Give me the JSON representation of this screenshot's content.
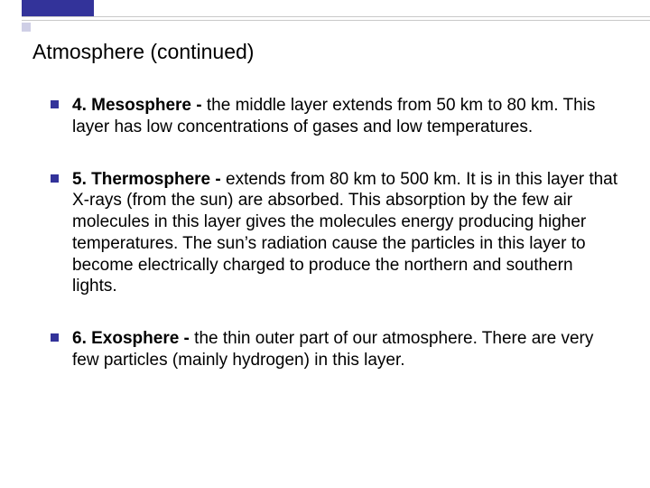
{
  "theme": {
    "accent_color": "#33339a",
    "accent_light": "#cfcfe6",
    "line_color": "#c9c9c9",
    "background": "#ffffff",
    "text_color": "#000000",
    "title_fontsize": 23,
    "body_fontsize": 19,
    "font_family": "Arial"
  },
  "slide": {
    "title": "Atmosphere (continued)",
    "items": [
      {
        "lead": "4. Mesosphere - ",
        "body": "the middle layer extends from 50 km to 80 km. This layer has low concentrations of gases and low temperatures."
      },
      {
        "lead": "5. Thermosphere - ",
        "body": "extends from 80 km to 500 km. It is in this layer that X-rays (from the sun) are absorbed. This absorption by the few air molecules in this layer gives the molecules energy producing higher temperatures. The sun’s radiation cause the particles in this layer to become electrically charged to produce the northern and southern lights."
      },
      {
        "lead": "6. Exosphere - ",
        "body": "the thin outer part of our atmosphere. There are very few particles (mainly hydrogen) in this layer."
      }
    ]
  }
}
